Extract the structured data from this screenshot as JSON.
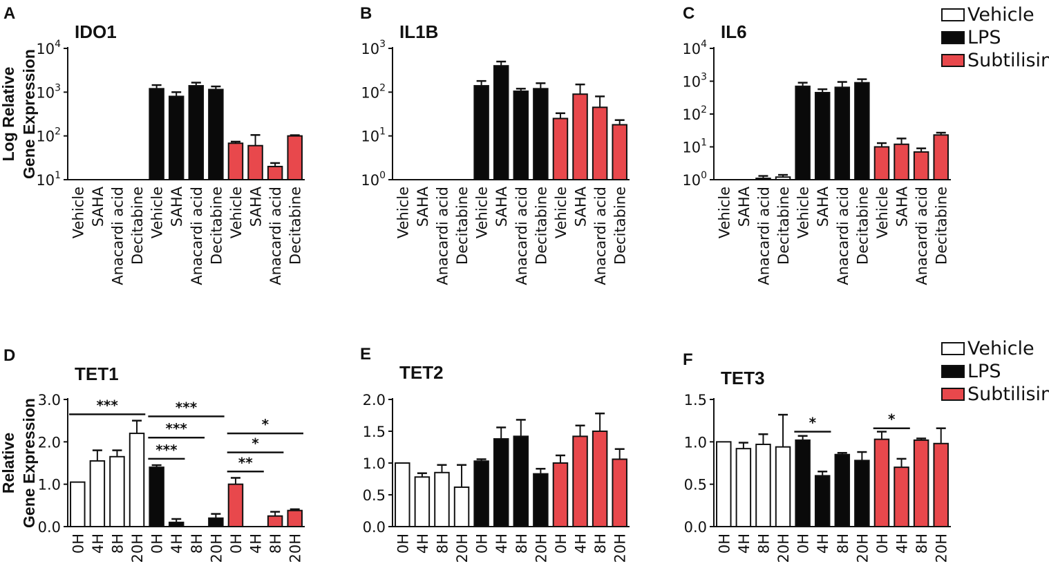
{
  "colors": {
    "vehicle": "#ffffff",
    "lps": "#0a0a0a",
    "subtilisin": "#e8484c",
    "axis": "#111111"
  },
  "legend_top": {
    "items": [
      {
        "label": "Vehicle",
        "color": "#ffffff"
      },
      {
        "label": "LPS",
        "color": "#0a0a0a"
      },
      {
        "label": "Subtilisin",
        "color": "#e8484c"
      }
    ]
  },
  "legend_bottom": {
    "items": [
      {
        "label": "Vehicle",
        "color": "#ffffff"
      },
      {
        "label": "LPS",
        "color": "#0a0a0a"
      },
      {
        "label": "Subtilisin",
        "color": "#e8484c"
      }
    ]
  },
  "ylabels": {
    "top": [
      "Log Relative",
      "Gene Expression"
    ],
    "bottom": [
      "Relative",
      "Gene Expression"
    ]
  },
  "chart_data": [
    {
      "panel": "A",
      "title": "IDO1",
      "type": "bar",
      "scale": "log",
      "ylim": [
        10,
        10000
      ],
      "yticks": [
        {
          "b": "10",
          "e": "4"
        },
        {
          "b": "10",
          "e": "3"
        },
        {
          "b": "10",
          "e": "2"
        },
        {
          "b": "10",
          "e": "1"
        }
      ],
      "categories": [
        "Vehicle",
        "SAHA",
        "Anacardi acid",
        "Decitabine",
        "Vehicle",
        "SAHA",
        "Anacardi acid",
        "Decitabine",
        "Vehicle",
        "SAHA",
        "Anacardi acid",
        "Decitabine"
      ],
      "groups": [
        "vehicle",
        "vehicle",
        "vehicle",
        "vehicle",
        "lps",
        "lps",
        "lps",
        "lps",
        "subtilisin",
        "subtilisin",
        "subtilisin",
        "subtilisin"
      ],
      "values": [
        10,
        10,
        10,
        10,
        1200,
        800,
        1400,
        1150,
        68,
        60,
        20,
        100
      ],
      "errors": [
        0,
        0,
        0,
        0,
        250,
        200,
        250,
        200,
        6,
        45,
        4,
        4
      ],
      "significance": []
    },
    {
      "panel": "B",
      "title": "IL1B",
      "type": "bar",
      "scale": "log",
      "ylim": [
        1,
        1000
      ],
      "yticks": [
        {
          "b": "10",
          "e": "3"
        },
        {
          "b": "10",
          "e": "2"
        },
        {
          "b": "10",
          "e": "1"
        },
        {
          "b": "10",
          "e": "0"
        }
      ],
      "categories": [
        "Vehicle",
        "SAHA",
        "Anacardi acid",
        "Decitabine",
        "Vehicle",
        "SAHA",
        "Anacardi acid",
        "Decitabine",
        "Vehicle",
        "SAHA",
        "Anacardi acid",
        "Decitabine"
      ],
      "groups": [
        "vehicle",
        "vehicle",
        "vehicle",
        "vehicle",
        "lps",
        "lps",
        "lps",
        "lps",
        "subtilisin",
        "subtilisin",
        "subtilisin",
        "subtilisin"
      ],
      "values": [
        1,
        1,
        1,
        1,
        140,
        400,
        105,
        120,
        25,
        90,
        45,
        18
      ],
      "errors": [
        0,
        0,
        0,
        0,
        40,
        100,
        15,
        40,
        8,
        60,
        35,
        5
      ],
      "significance": []
    },
    {
      "panel": "C",
      "title": "IL6",
      "type": "bar",
      "scale": "log",
      "ylim": [
        1,
        10000
      ],
      "yticks": [
        {
          "b": "10",
          "e": "4"
        },
        {
          "b": "10",
          "e": "3"
        },
        {
          "b": "10",
          "e": "2"
        },
        {
          "b": "10",
          "e": "1"
        },
        {
          "b": "10",
          "e": "0"
        }
      ],
      "categories": [
        "Vehicle",
        "SAHA",
        "Anacardi acid",
        "Decitabine",
        "Vehicle",
        "SAHA",
        "Anacardi acid",
        "Decitabine",
        "Vehicle",
        "SAHA",
        "Anacardi acid",
        "Decitabine"
      ],
      "groups": [
        "vehicle",
        "vehicle",
        "vehicle",
        "vehicle",
        "lps",
        "lps",
        "lps",
        "lps",
        "subtilisin",
        "subtilisin",
        "subtilisin",
        "subtilisin"
      ],
      "values": [
        1,
        1,
        1.1,
        1.2,
        700,
        450,
        650,
        900,
        10,
        12,
        7,
        23
      ],
      "errors": [
        0,
        0,
        0.2,
        0.2,
        200,
        120,
        300,
        250,
        3,
        6,
        2,
        4
      ],
      "significance": []
    },
    {
      "panel": "D",
      "title": "TET1",
      "type": "bar",
      "scale": "linear",
      "ylim": [
        0,
        3
      ],
      "yticks": [
        "3.0",
        "2.0",
        "1.0",
        "0.0"
      ],
      "categories": [
        "0H",
        "4H",
        "8H",
        "20H",
        "0H",
        "4H",
        "8H",
        "20H",
        "0H",
        "4H",
        "8H",
        "20H"
      ],
      "groups": [
        "vehicle",
        "vehicle",
        "vehicle",
        "vehicle",
        "lps",
        "lps",
        "lps",
        "lps",
        "subtilisin",
        "subtilisin",
        "subtilisin",
        "subtilisin"
      ],
      "values": [
        1.05,
        1.55,
        1.65,
        2.2,
        1.4,
        0.1,
        0.0,
        0.2,
        1.0,
        0.0,
        0.25,
        0.38
      ],
      "errors": [
        0,
        0.25,
        0.15,
        0.3,
        0.05,
        0.08,
        0,
        0.1,
        0.15,
        0,
        0.1,
        0.03
      ],
      "significance": [
        {
          "from": 0,
          "to": 3,
          "y": 2.65,
          "label": "***"
        },
        {
          "from": 4,
          "to": 5,
          "y": 1.6,
          "label": "***"
        },
        {
          "from": 4,
          "to": 6,
          "y": 2.1,
          "label": "***"
        },
        {
          "from": 4,
          "to": 7,
          "y": 2.6,
          "label": "***"
        },
        {
          "from": 8,
          "to": 9,
          "y": 1.3,
          "label": "**"
        },
        {
          "from": 8,
          "to": 10,
          "y": 1.75,
          "label": "*"
        },
        {
          "from": 8,
          "to": 11,
          "y": 2.2,
          "label": "*"
        }
      ]
    },
    {
      "panel": "E",
      "title": "TET2",
      "type": "bar",
      "scale": "linear",
      "ylim": [
        0,
        2
      ],
      "yticks": [
        "2.0",
        "1.5",
        "1.0",
        "0.5",
        "0.0"
      ],
      "categories": [
        "0H",
        "4H",
        "8H",
        "20H",
        "0H",
        "4H",
        "8H",
        "20H",
        "0H",
        "4H",
        "8H",
        "20H"
      ],
      "groups": [
        "vehicle",
        "vehicle",
        "vehicle",
        "vehicle",
        "lps",
        "lps",
        "lps",
        "lps",
        "subtilisin",
        "subtilisin",
        "subtilisin",
        "subtilisin"
      ],
      "values": [
        1.0,
        0.78,
        0.85,
        0.62,
        1.03,
        1.38,
        1.42,
        0.83,
        1.0,
        1.42,
        1.5,
        1.06
      ],
      "errors": [
        0,
        0.06,
        0.12,
        0.35,
        0.03,
        0.18,
        0.26,
        0.08,
        0.12,
        0.17,
        0.28,
        0.16
      ],
      "significance": []
    },
    {
      "panel": "F",
      "title": "TET3",
      "type": "bar",
      "scale": "linear",
      "ylim": [
        0,
        1.5
      ],
      "yticks": [
        "1.5",
        "1.0",
        "0.5",
        "0.0"
      ],
      "categories": [
        "0H",
        "4H",
        "8H",
        "20H",
        "0H",
        "4H",
        "8H",
        "20H",
        "0H",
        "4H",
        "8H",
        "20H"
      ],
      "groups": [
        "vehicle",
        "vehicle",
        "vehicle",
        "vehicle",
        "lps",
        "lps",
        "lps",
        "lps",
        "subtilisin",
        "subtilisin",
        "subtilisin",
        "subtilisin"
      ],
      "values": [
        1.0,
        0.92,
        0.97,
        0.94,
        1.02,
        0.6,
        0.85,
        0.78,
        1.03,
        0.7,
        1.02,
        0.98
      ],
      "errors": [
        0,
        0.07,
        0.12,
        0.38,
        0.05,
        0.05,
        0.02,
        0.1,
        0.09,
        0.1,
        0.02,
        0.18
      ],
      "significance": [
        {
          "from": 4,
          "to": 5,
          "y": 1.12,
          "label": "*"
        },
        {
          "from": 8,
          "to": 9,
          "y": 1.16,
          "label": "*"
        }
      ]
    }
  ]
}
